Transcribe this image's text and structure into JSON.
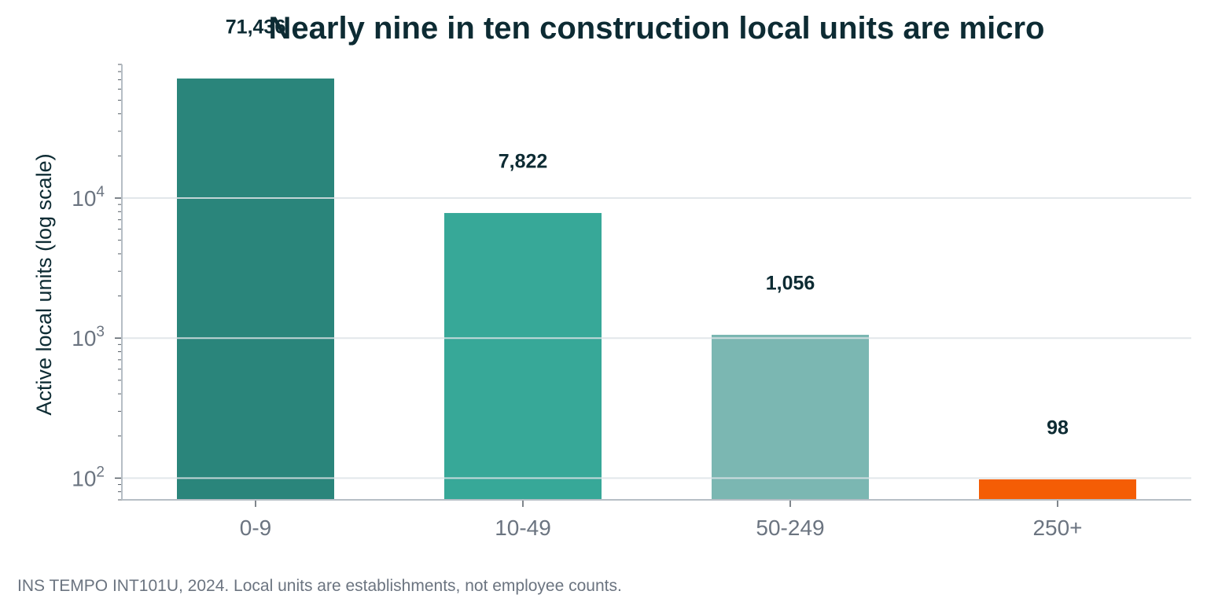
{
  "chart_data": {
    "type": "bar",
    "title": "Nearly nine in ten construction local units are micro",
    "xlabel": "",
    "ylabel": "Active local units (log scale)",
    "y_scale": "log",
    "ylim": [
      70,
      90000
    ],
    "grid": "horizontal",
    "categories": [
      "0-9",
      "10-49",
      "50-249",
      "250+"
    ],
    "values": [
      71436,
      7822,
      1056,
      98
    ],
    "data_labels": [
      "71,436",
      "7,822",
      "1,056",
      "98"
    ],
    "y_ticks": [
      {
        "value": 100,
        "base": "10",
        "exp": "2"
      },
      {
        "value": 1000,
        "base": "10",
        "exp": "3"
      },
      {
        "value": 10000,
        "base": "10",
        "exp": "4"
      }
    ],
    "colors": [
      "#2a857b",
      "#37a898",
      "#7bb7b2",
      "#f45d05"
    ]
  },
  "footer": {
    "note": "INS TEMPO INT101U, 2024. Local units are establishments, not employee counts."
  }
}
